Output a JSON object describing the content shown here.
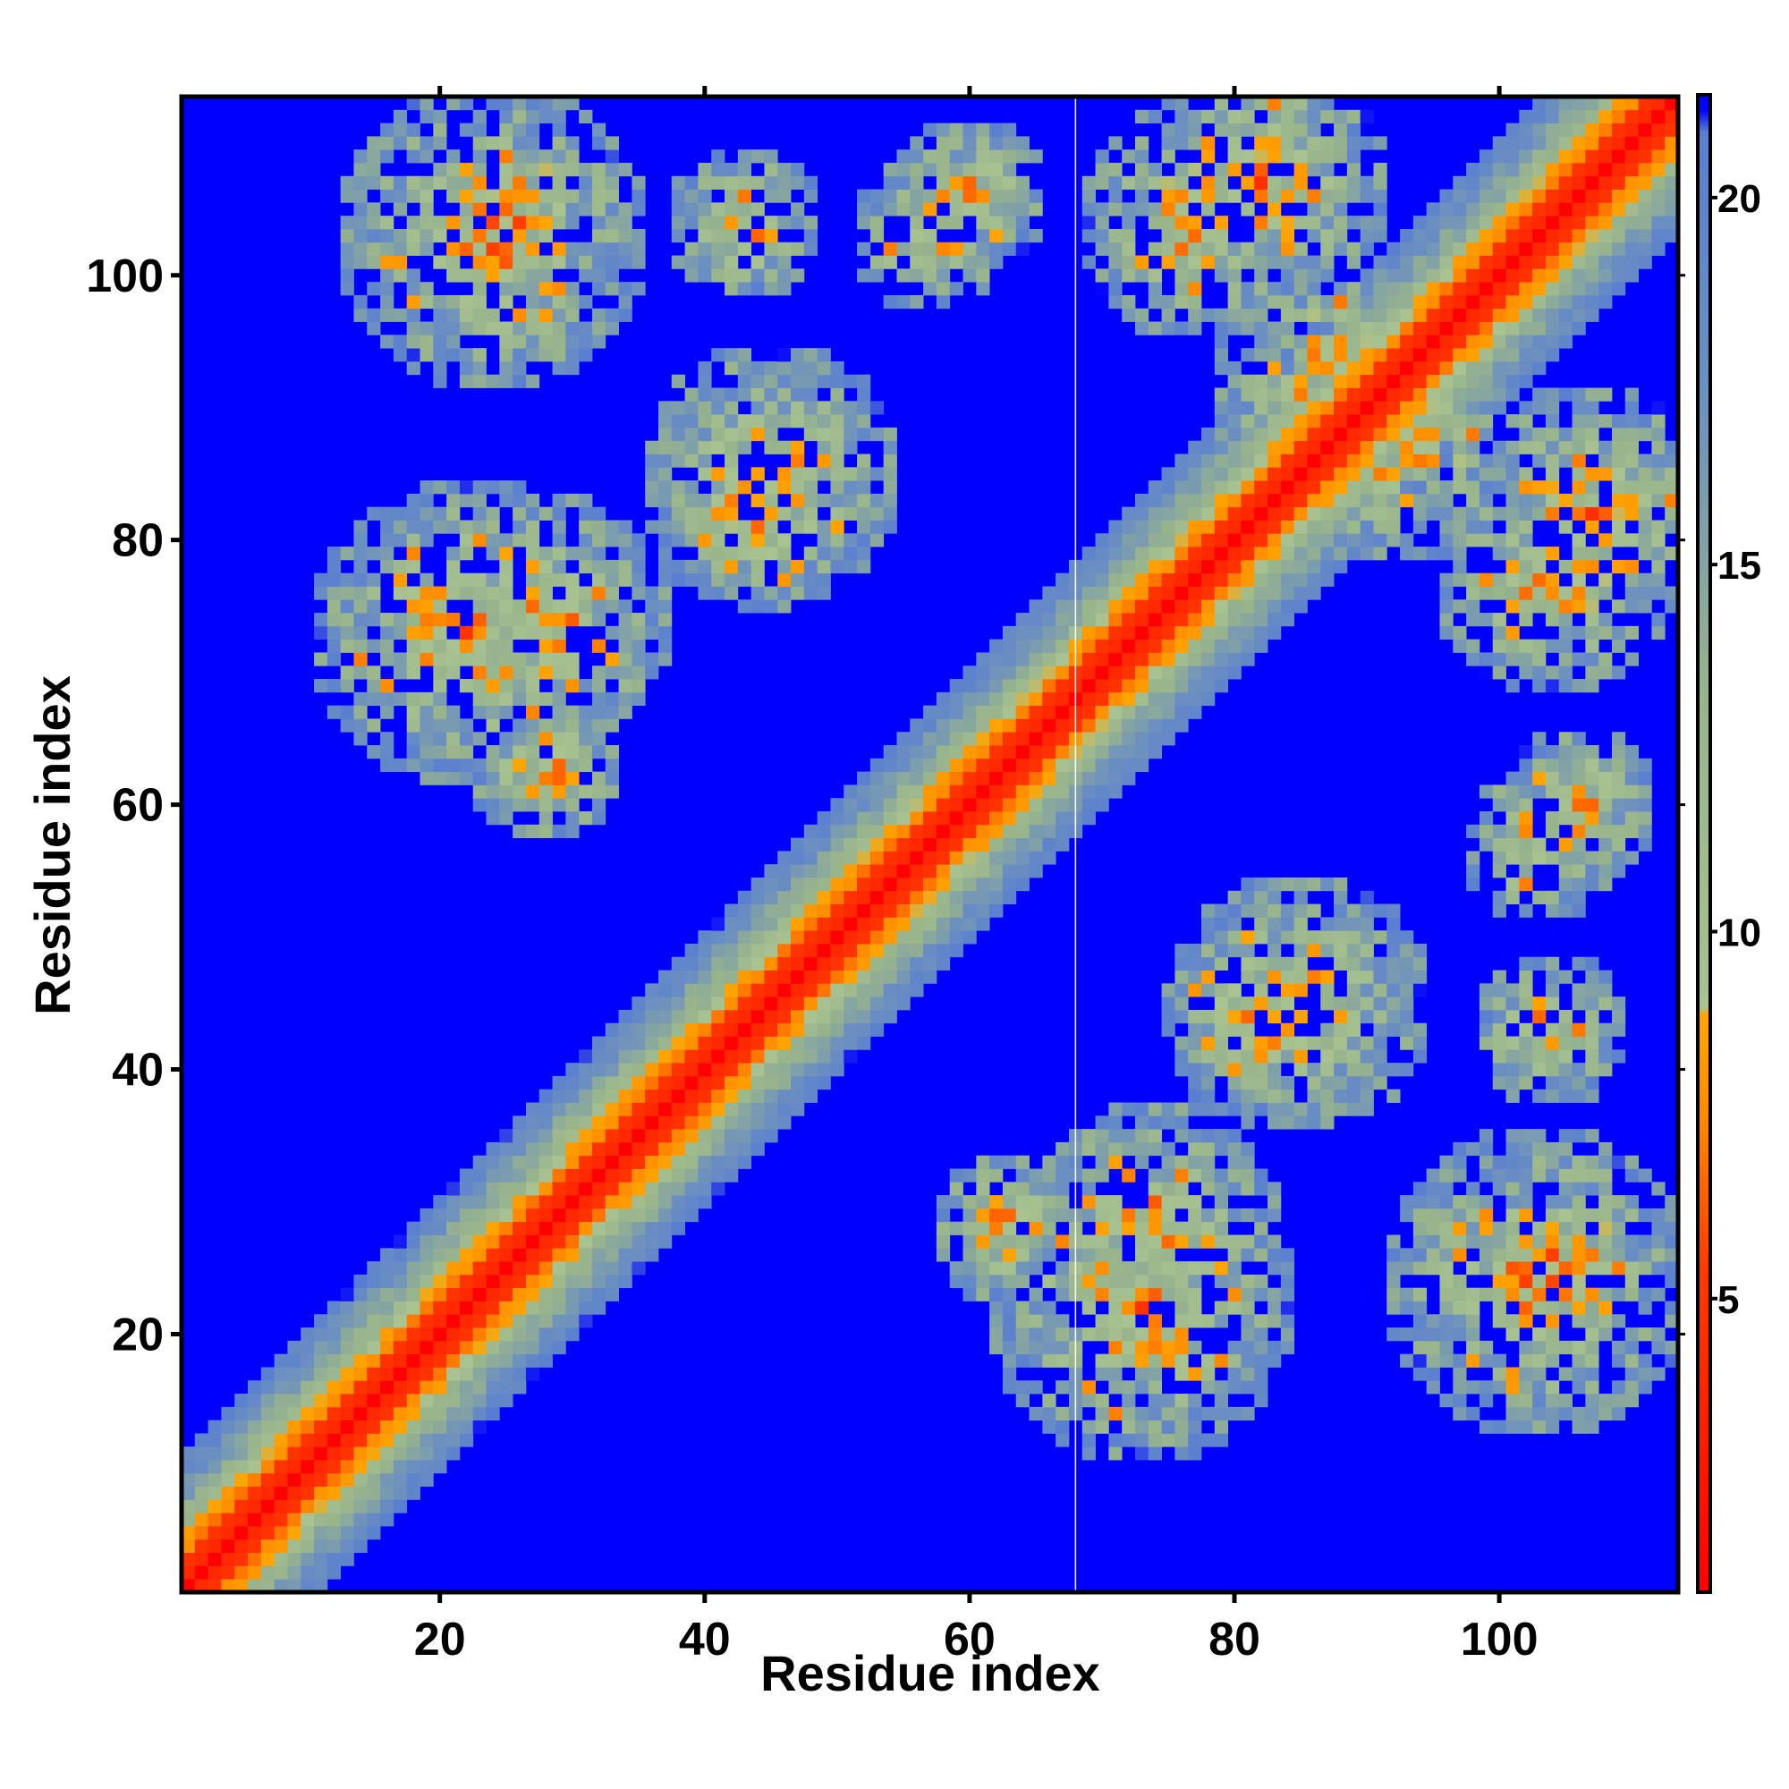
{
  "chart_data": {
    "type": "heatmap",
    "title": "",
    "xlabel": "Residue index",
    "ylabel": "Residue index",
    "n_residues": 113,
    "xlim": [
      1,
      113
    ],
    "ylim": [
      1,
      113
    ],
    "x_ticks": [
      20,
      40,
      60,
      80,
      100
    ],
    "y_ticks": [
      20,
      40,
      60,
      80,
      100
    ],
    "colorbar": {
      "range": [
        1,
        21.4
      ],
      "ticks": [
        5,
        10,
        15,
        20
      ],
      "colors": {
        "very_close": "#ff0000",
        "close": "#ff8c00",
        "near": "#ffa500",
        "mid": "#a6c08c",
        "far": "#6a8fc4",
        "beyond": "#0000ff"
      },
      "stops": [
        {
          "value": 1,
          "color": "#ff0000"
        },
        {
          "value": 5.5,
          "color": "#ff4000"
        },
        {
          "value": 7.5,
          "color": "#ff8c00"
        },
        {
          "value": 8.8,
          "color": "#ffa500"
        },
        {
          "value": 9.0,
          "color": "#a8c290"
        },
        {
          "value": 13.0,
          "color": "#98b48c"
        },
        {
          "value": 17.0,
          "color": "#6c90c0"
        },
        {
          "value": 20.6,
          "color": "#5a7fd0"
        },
        {
          "value": 21.0,
          "color": "#0000ff"
        }
      ]
    },
    "contact_clusters": [
      {
        "center": [
          24,
          103
        ],
        "radius": 12,
        "description": "contact"
      },
      {
        "center": [
          103,
          24
        ],
        "radius": 12,
        "description": "contact"
      },
      {
        "center": [
          45,
          85
        ],
        "radius": 10
      },
      {
        "center": [
          85,
          45
        ],
        "radius": 10
      },
      {
        "center": [
          22,
          73
        ],
        "radius": 12
      },
      {
        "center": [
          73,
          22
        ],
        "radius": 12
      },
      {
        "center": [
          87,
          92
        ],
        "radius": 9
      },
      {
        "center": [
          92,
          87
        ],
        "radius": 9
      },
      {
        "center": [
          57,
          103
        ],
        "radius": 6
      },
      {
        "center": [
          103,
          57
        ],
        "radius": 6
      },
      {
        "center": [
          82,
          107
        ],
        "radius": 10
      },
      {
        "center": [
          107,
          82
        ],
        "radius": 10
      },
      {
        "center": [
          28,
          63
        ],
        "radius": 6
      },
      {
        "center": [
          63,
          28
        ],
        "radius": 6
      },
      {
        "center": [
          104,
          77
        ],
        "radius": 9
      },
      {
        "center": [
          77,
          104
        ],
        "radius": 9
      },
      {
        "center": [
          104,
          25
        ],
        "radius": 10
      },
      {
        "center": [
          25,
          104
        ],
        "radius": 10
      },
      {
        "center": [
          74,
          28
        ],
        "radius": 10
      },
      {
        "center": [
          28,
          74
        ],
        "radius": 10
      },
      {
        "center": [
          106,
          60
        ],
        "radius": 6
      },
      {
        "center": [
          60,
          106
        ],
        "radius": 6
      },
      {
        "center": [
          82,
          44
        ],
        "radius": 8
      },
      {
        "center": [
          44,
          82
        ],
        "radius": 8
      },
      {
        "center": [
          104,
          43
        ],
        "radius": 6
      },
      {
        "center": [
          43,
          104
        ],
        "radius": 6
      }
    ]
  }
}
